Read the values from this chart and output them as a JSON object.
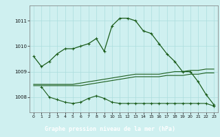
{
  "title": "Graphe pression niveau de la mer (hPa)",
  "bg_color": "#cff0f0",
  "plot_bg_color": "#cff0f0",
  "label_bg_color": "#3a7a3a",
  "label_fg_color": "#ffffff",
  "grid_color": "#aadddd",
  "line_color": "#1a5c1a",
  "xlim": [
    -0.5,
    23.5
  ],
  "ylim": [
    1007.4,
    1011.6
  ],
  "yticks": [
    1008,
    1009,
    1010,
    1011
  ],
  "xticks": [
    0,
    1,
    2,
    3,
    4,
    5,
    6,
    7,
    8,
    9,
    10,
    11,
    12,
    13,
    14,
    15,
    16,
    17,
    18,
    19,
    20,
    21,
    22,
    23
  ],
  "main_line": {
    "x": [
      0,
      1,
      2,
      3,
      4,
      5,
      6,
      7,
      8,
      9,
      10,
      11,
      12,
      13,
      14,
      15,
      16,
      17,
      18,
      19,
      20,
      21,
      22,
      23
    ],
    "y": [
      1009.6,
      1009.2,
      1009.4,
      1009.7,
      1009.9,
      1009.9,
      1010.0,
      1010.1,
      1010.3,
      1009.8,
      1010.8,
      1011.1,
      1011.1,
      1011.0,
      1010.6,
      1010.5,
      1010.1,
      1009.7,
      1009.4,
      1009.0,
      1009.0,
      1008.6,
      1008.1,
      1007.7
    ]
  },
  "flat_line1": {
    "x": [
      0,
      1,
      2,
      3,
      4,
      5,
      6,
      7,
      8,
      9,
      10,
      11,
      12,
      13,
      14,
      15,
      16,
      17,
      18,
      19,
      20,
      21,
      22,
      23
    ],
    "y": [
      1008.5,
      1008.5,
      1008.5,
      1008.5,
      1008.5,
      1008.5,
      1008.55,
      1008.6,
      1008.65,
      1008.7,
      1008.75,
      1008.8,
      1008.85,
      1008.9,
      1008.9,
      1008.9,
      1008.9,
      1008.95,
      1009.0,
      1009.0,
      1009.05,
      1009.05,
      1009.1,
      1009.1
    ]
  },
  "flat_line2": {
    "x": [
      0,
      1,
      2,
      3,
      4,
      5,
      6,
      7,
      8,
      9,
      10,
      11,
      12,
      13,
      14,
      15,
      16,
      17,
      18,
      19,
      20,
      21,
      22,
      23
    ],
    "y": [
      1008.45,
      1008.45,
      1008.45,
      1008.45,
      1008.45,
      1008.45,
      1008.45,
      1008.5,
      1008.55,
      1008.6,
      1008.65,
      1008.7,
      1008.75,
      1008.8,
      1008.8,
      1008.8,
      1008.8,
      1008.85,
      1008.85,
      1008.85,
      1008.9,
      1008.9,
      1008.95,
      1008.95
    ]
  },
  "bottom_line": {
    "x": [
      1,
      2,
      3,
      4,
      5,
      6,
      7,
      8,
      9,
      10,
      11,
      12,
      13,
      14,
      15,
      16,
      17,
      18,
      19,
      20,
      21,
      22,
      23
    ],
    "y": [
      1008.4,
      1008.0,
      1007.9,
      1007.8,
      1007.75,
      1007.8,
      1007.95,
      1008.05,
      1007.95,
      1007.8,
      1007.75,
      1007.75,
      1007.75,
      1007.75,
      1007.75,
      1007.75,
      1007.75,
      1007.75,
      1007.75,
      1007.75,
      1007.75,
      1007.75,
      1007.65
    ]
  }
}
